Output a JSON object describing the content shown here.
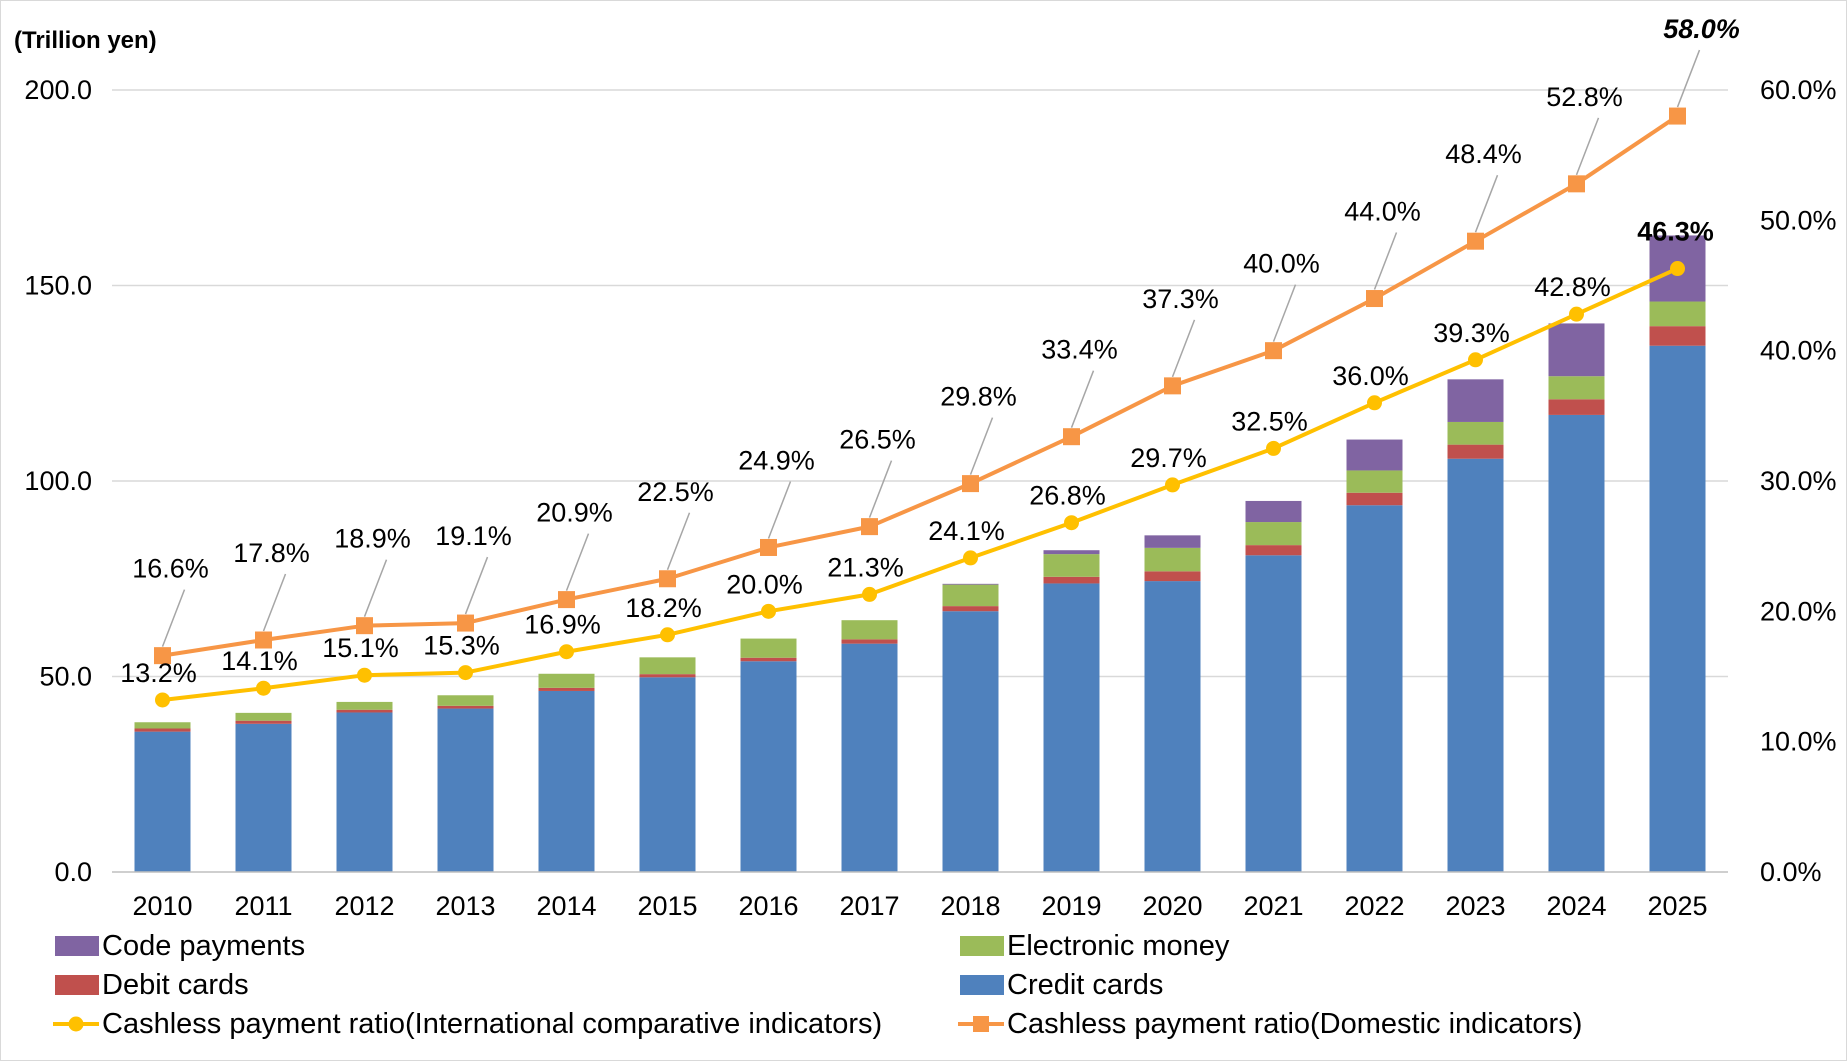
{
  "chart_data": {
    "type": "bar",
    "stacked": true,
    "unit_label": "(Trillion yen)",
    "categories": [
      "2010",
      "2011",
      "2012",
      "2013",
      "2014",
      "2015",
      "2016",
      "2017",
      "2018",
      "2019",
      "2020",
      "2021",
      "2022",
      "2023",
      "2024",
      "2025"
    ],
    "series": [
      {
        "name": "Credit cards",
        "type": "bar",
        "axis": "left",
        "color": "#4F81BD",
        "values": [
          35.9,
          37.9,
          40.8,
          41.8,
          46.3,
          49.8,
          53.9,
          58.4,
          66.7,
          73.8,
          74.4,
          81.0,
          93.8,
          105.7,
          116.9,
          134.6
        ]
      },
      {
        "name": "Debit cards",
        "type": "bar",
        "axis": "left",
        "color": "#C0504D",
        "values": [
          0.8,
          0.8,
          0.7,
          0.7,
          0.8,
          0.8,
          0.9,
          1.1,
          1.3,
          1.7,
          2.5,
          2.6,
          3.2,
          3.6,
          4.0,
          5.0
        ]
      },
      {
        "name": "Electronic money",
        "type": "bar",
        "axis": "left",
        "color": "#9BBB59",
        "values": [
          1.6,
          2.0,
          2.0,
          2.7,
          3.6,
          4.3,
          4.9,
          4.9,
          5.5,
          5.8,
          6.0,
          5.9,
          5.7,
          5.8,
          5.9,
          6.3
        ]
      },
      {
        "name": "Code payments",
        "type": "bar",
        "axis": "left",
        "color": "#8064A2",
        "values": [
          0,
          0,
          0,
          0,
          0,
          0,
          0,
          0,
          0.2,
          1.0,
          3.2,
          5.4,
          7.9,
          10.9,
          13.5,
          16.9
        ]
      },
      {
        "name": "Cashless payment ratio(International comparative indicators)",
        "type": "line",
        "axis": "right",
        "color": "#FFC000",
        "marker": "circle",
        "values": [
          13.2,
          14.1,
          15.1,
          15.3,
          16.9,
          18.2,
          20.0,
          21.3,
          24.1,
          26.8,
          29.7,
          32.5,
          36.0,
          39.3,
          42.8,
          46.3
        ],
        "labels": [
          "13.2%",
          "14.1%",
          "15.1%",
          "15.3%",
          "16.9%",
          "18.2%",
          "20.0%",
          "21.3%",
          "24.1%",
          "26.8%",
          "29.7%",
          "32.5%",
          "36.0%",
          "39.3%",
          "42.8%",
          "46.3%"
        ]
      },
      {
        "name": "Cashless payment ratio(Domestic indicators)",
        "type": "line",
        "axis": "right",
        "color": "#F79646",
        "marker": "square",
        "values": [
          16.6,
          17.8,
          18.9,
          19.1,
          20.9,
          22.5,
          24.9,
          26.5,
          29.8,
          33.4,
          37.3,
          40.0,
          44.0,
          48.4,
          52.8,
          58.0
        ],
        "labels": [
          "16.6%",
          "17.8%",
          "18.9%",
          "19.1%",
          "20.9%",
          "22.5%",
          "24.9%",
          "26.5%",
          "29.8%",
          "33.4%",
          "37.3%",
          "40.0%",
          "44.0%",
          "48.4%",
          "52.8%",
          "58.0%"
        ]
      }
    ],
    "y_left": {
      "ticks": [
        "0.0",
        "50.0",
        "100.0",
        "150.0",
        "200.0"
      ],
      "ylim": [
        0,
        200
      ],
      "grid": true
    },
    "y_right": {
      "ticks": [
        "0.0%",
        "10.0%",
        "20.0%",
        "30.0%",
        "40.0%",
        "50.0%",
        "60.0%"
      ],
      "ylim": [
        0,
        60
      ]
    },
    "highlight": {
      "last_domestic_color": "#FF0000"
    },
    "legend_position": "bottom",
    "legend_order": [
      "Code payments",
      "Electronic money",
      "Debit cards",
      "Credit cards",
      "Cashless payment ratio(International comparative indicators)",
      "Cashless payment ratio(Domestic indicators)"
    ]
  }
}
